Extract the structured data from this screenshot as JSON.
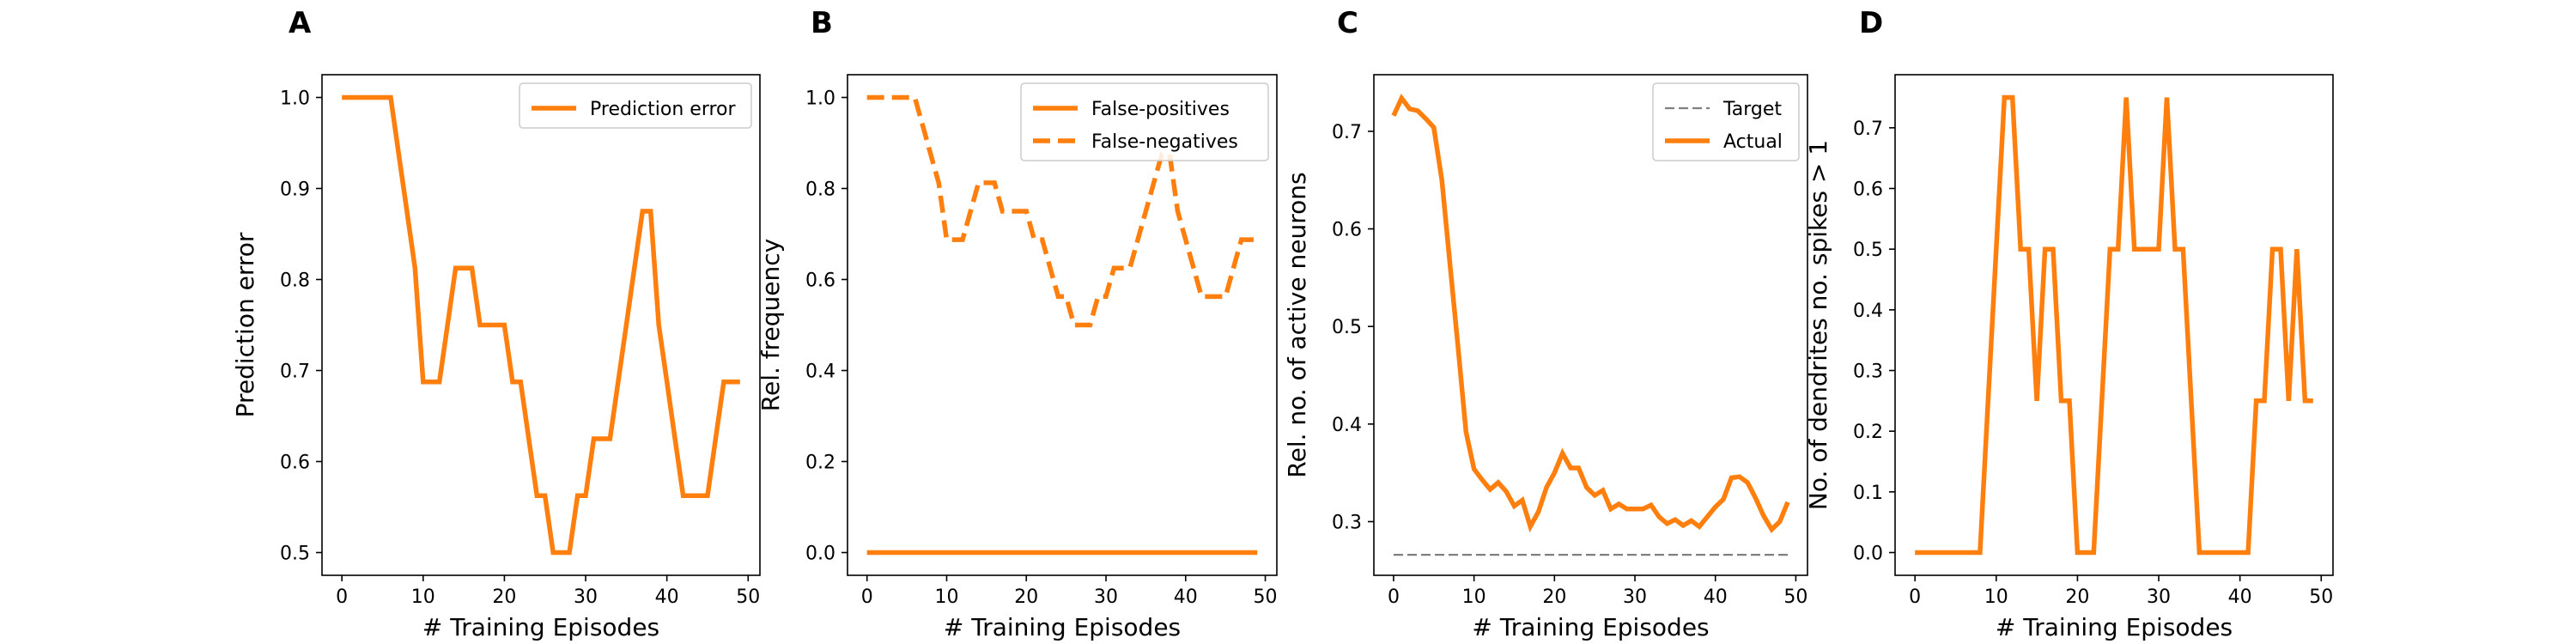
{
  "figure": {
    "background": "#ffffff",
    "line_color": "#ff7f0e",
    "target_color": "#808080"
  },
  "chart_data": [
    {
      "panel_label": "A",
      "type": "line",
      "title": "",
      "xlabel": "# Training Episodes",
      "ylabel": "Prediction error",
      "xlim": [
        -2.45,
        51.45
      ],
      "ylim": [
        0.475,
        1.025
      ],
      "xticks": [
        0,
        10,
        20,
        30,
        40,
        50
      ],
      "xtick_labels": [
        "0",
        "10",
        "20",
        "30",
        "40",
        "50"
      ],
      "yticks": [
        0.5,
        0.6,
        0.7,
        0.8,
        0.9,
        1.0
      ],
      "ytick_labels": [
        "0.5",
        "0.6",
        "0.7",
        "0.8",
        "0.9",
        "1.0"
      ],
      "grid": false,
      "legend_position": "top-right",
      "series": [
        {
          "name": "Prediction error",
          "color": "#ff7f0e",
          "style": "solid",
          "x": [
            0,
            1,
            2,
            3,
            4,
            5,
            6,
            7,
            8,
            9,
            10,
            11,
            12,
            13,
            14,
            15,
            16,
            17,
            18,
            19,
            20,
            21,
            22,
            23,
            24,
            25,
            26,
            27,
            28,
            29,
            30,
            31,
            32,
            33,
            34,
            35,
            36,
            37,
            38,
            39,
            40,
            41,
            42,
            43,
            44,
            45,
            46,
            47,
            48,
            49
          ],
          "y": [
            1.0,
            1.0,
            1.0,
            1.0,
            1.0,
            1.0,
            1.0,
            0.9375,
            0.875,
            0.8125,
            0.6875,
            0.6875,
            0.6875,
            0.75,
            0.8125,
            0.8125,
            0.8125,
            0.75,
            0.75,
            0.75,
            0.75,
            0.6875,
            0.6875,
            0.625,
            0.5625,
            0.5625,
            0.5,
            0.5,
            0.5,
            0.5625,
            0.5625,
            0.625,
            0.625,
            0.625,
            0.6875,
            0.75,
            0.8125,
            0.875,
            0.875,
            0.75,
            0.6875,
            0.625,
            0.5625,
            0.5625,
            0.5625,
            0.5625,
            0.625,
            0.6875,
            0.6875,
            0.6875
          ]
        }
      ]
    },
    {
      "panel_label": "B",
      "type": "line",
      "title": "",
      "xlabel": "# Training Episodes",
      "ylabel": "Rel. frequency",
      "xlim": [
        -2.45,
        51.45
      ],
      "ylim": [
        -0.05,
        1.05
      ],
      "xticks": [
        0,
        10,
        20,
        30,
        40,
        50
      ],
      "xtick_labels": [
        "0",
        "10",
        "20",
        "30",
        "40",
        "50"
      ],
      "yticks": [
        0.0,
        0.2,
        0.4,
        0.6,
        0.8,
        1.0
      ],
      "ytick_labels": [
        "0.0",
        "0.2",
        "0.4",
        "0.6",
        "0.8",
        "1.0"
      ],
      "grid": false,
      "legend_position": "top-right",
      "series": [
        {
          "name": "False-positives",
          "color": "#ff7f0e",
          "style": "solid",
          "x": [
            0,
            1,
            2,
            3,
            4,
            5,
            6,
            7,
            8,
            9,
            10,
            11,
            12,
            13,
            14,
            15,
            16,
            17,
            18,
            19,
            20,
            21,
            22,
            23,
            24,
            25,
            26,
            27,
            28,
            29,
            30,
            31,
            32,
            33,
            34,
            35,
            36,
            37,
            38,
            39,
            40,
            41,
            42,
            43,
            44,
            45,
            46,
            47,
            48,
            49
          ],
          "y": [
            0,
            0,
            0,
            0,
            0,
            0,
            0,
            0,
            0,
            0,
            0,
            0,
            0,
            0,
            0,
            0,
            0,
            0,
            0,
            0,
            0,
            0,
            0,
            0,
            0,
            0,
            0,
            0,
            0,
            0,
            0,
            0,
            0,
            0,
            0,
            0,
            0,
            0,
            0,
            0,
            0,
            0,
            0,
            0,
            0,
            0,
            0,
            0,
            0,
            0
          ]
        },
        {
          "name": "False-negatives",
          "color": "#ff7f0e",
          "style": "dashed",
          "x": [
            0,
            1,
            2,
            3,
            4,
            5,
            6,
            7,
            8,
            9,
            10,
            11,
            12,
            13,
            14,
            15,
            16,
            17,
            18,
            19,
            20,
            21,
            22,
            23,
            24,
            25,
            26,
            27,
            28,
            29,
            30,
            31,
            32,
            33,
            34,
            35,
            36,
            37,
            38,
            39,
            40,
            41,
            42,
            43,
            44,
            45,
            46,
            47,
            48,
            49
          ],
          "y": [
            1.0,
            1.0,
            1.0,
            1.0,
            1.0,
            1.0,
            1.0,
            0.9375,
            0.875,
            0.8125,
            0.6875,
            0.6875,
            0.6875,
            0.75,
            0.8125,
            0.8125,
            0.8125,
            0.75,
            0.75,
            0.75,
            0.75,
            0.6875,
            0.6875,
            0.625,
            0.5625,
            0.5625,
            0.5,
            0.5,
            0.5,
            0.5625,
            0.5625,
            0.625,
            0.625,
            0.625,
            0.6875,
            0.75,
            0.8125,
            0.875,
            0.875,
            0.75,
            0.6875,
            0.625,
            0.5625,
            0.5625,
            0.5625,
            0.5625,
            0.625,
            0.6875,
            0.6875,
            0.6875
          ]
        }
      ]
    },
    {
      "panel_label": "C",
      "type": "line",
      "title": "",
      "xlabel": "# Training Episodes",
      "ylabel": "Rel. no. of active neurons",
      "xlim": [
        -2.45,
        51.45
      ],
      "ylim": [
        0.245,
        0.758
      ],
      "xticks": [
        0,
        10,
        20,
        30,
        40,
        50
      ],
      "xtick_labels": [
        "0",
        "10",
        "20",
        "30",
        "40",
        "50"
      ],
      "yticks": [
        0.3,
        0.4,
        0.5,
        0.6,
        0.7
      ],
      "ytick_labels": [
        "0.3",
        "0.4",
        "0.5",
        "0.6",
        "0.7"
      ],
      "grid": false,
      "legend_position": "top-right",
      "series": [
        {
          "name": "Target",
          "color": "#808080",
          "style": "dashed",
          "width": "thin",
          "x": [
            0,
            49
          ],
          "y": [
            0.266,
            0.266
          ]
        },
        {
          "name": "Actual",
          "color": "#ff7f0e",
          "style": "solid",
          "x": [
            0,
            1,
            2,
            3,
            4,
            5,
            6,
            7,
            8,
            9,
            10,
            11,
            12,
            13,
            14,
            15,
            16,
            17,
            18,
            19,
            20,
            21,
            22,
            23,
            24,
            25,
            26,
            27,
            28,
            29,
            30,
            31,
            32,
            33,
            34,
            35,
            36,
            37,
            38,
            39,
            40,
            41,
            42,
            43,
            44,
            45,
            46,
            47,
            48,
            49
          ],
          "y": [
            0.716,
            0.734,
            0.723,
            0.721,
            0.713,
            0.704,
            0.65,
            0.565,
            0.48,
            0.392,
            0.354,
            0.343,
            0.333,
            0.34,
            0.331,
            0.316,
            0.322,
            0.295,
            0.31,
            0.335,
            0.35,
            0.37,
            0.355,
            0.355,
            0.335,
            0.327,
            0.332,
            0.313,
            0.318,
            0.313,
            0.313,
            0.313,
            0.317,
            0.305,
            0.298,
            0.302,
            0.296,
            0.301,
            0.295,
            0.305,
            0.315,
            0.323,
            0.345,
            0.346,
            0.34,
            0.324,
            0.306,
            0.292,
            0.3,
            0.32
          ]
        }
      ]
    },
    {
      "panel_label": "D",
      "type": "line",
      "title": "",
      "xlabel": "# Training Episodes",
      "ylabel": "No. of dendrites no. spikes > 1",
      "xlim": [
        -2.45,
        51.45
      ],
      "ylim": [
        -0.0375,
        0.7875
      ],
      "xticks": [
        0,
        10,
        20,
        30,
        40,
        50
      ],
      "xtick_labels": [
        "0",
        "10",
        "20",
        "30",
        "40",
        "50"
      ],
      "yticks": [
        0.0,
        0.1,
        0.2,
        0.3,
        0.4,
        0.5,
        0.6,
        0.7
      ],
      "ytick_labels": [
        "0.0",
        "0.1",
        "0.2",
        "0.3",
        "0.4",
        "0.5",
        "0.6",
        "0.7"
      ],
      "grid": false,
      "legend_position": "none",
      "series": [
        {
          "name": "",
          "color": "#ff7f0e",
          "style": "solid",
          "x": [
            0,
            1,
            2,
            3,
            4,
            5,
            6,
            7,
            8,
            9,
            10,
            11,
            12,
            13,
            14,
            15,
            16,
            17,
            18,
            19,
            20,
            21,
            22,
            23,
            24,
            25,
            26,
            27,
            28,
            29,
            30,
            31,
            32,
            33,
            34,
            35,
            36,
            37,
            38,
            39,
            40,
            41,
            42,
            43,
            44,
            45,
            46,
            47,
            48,
            49
          ],
          "y": [
            0,
            0,
            0,
            0,
            0,
            0,
            0,
            0,
            0,
            0.25,
            0.5,
            0.75,
            0.75,
            0.5,
            0.5,
            0.25,
            0.5,
            0.5,
            0.25,
            0.25,
            0,
            0,
            0,
            0.25,
            0.5,
            0.5,
            0.75,
            0.5,
            0.5,
            0.5,
            0.5,
            0.75,
            0.5,
            0.5,
            0.25,
            0,
            0,
            0,
            0,
            0,
            0,
            0,
            0.25,
            0.25,
            0.5,
            0.5,
            0.25,
            0.5,
            0.25,
            0.25
          ]
        }
      ]
    }
  ]
}
